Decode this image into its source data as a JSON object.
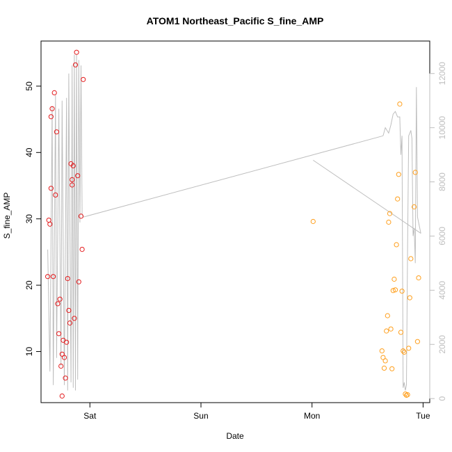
{
  "chart_data": {
    "type": "scatter",
    "title": "ATOM1 Northeast_Pacific S_fine_AMP",
    "xlabel": "Date",
    "ylabel": "S_fine_AMP",
    "x_ticks": [
      "Sat",
      "Sun",
      "Mon",
      "Tue"
    ],
    "x_tick_values": [
      1.0,
      2.0,
      3.0,
      4.0
    ],
    "xlim": [
      0.56,
      4.06
    ],
    "ylim": [
      2.3,
      56.8
    ],
    "y_ticks": [
      10,
      20,
      30,
      40,
      50
    ],
    "y2_ticks": [
      0,
      2000,
      4000,
      6000,
      8000,
      10000,
      12000
    ],
    "y2lim": [
      -150,
      13200
    ],
    "grid": false,
    "colors": {
      "series1": "#e41a1c",
      "series2": "#ff9f1c",
      "line": "#bebebe"
    },
    "series": [
      {
        "color": "#e41a1c",
        "points": [
          [
            0.62,
            21.3
          ],
          [
            0.63,
            29.8
          ],
          [
            0.64,
            29.2
          ],
          [
            0.65,
            34.6
          ],
          [
            0.65,
            45.4
          ],
          [
            0.66,
            46.6
          ],
          [
            0.67,
            21.3
          ],
          [
            0.68,
            49.0
          ],
          [
            0.69,
            33.6
          ],
          [
            0.7,
            43.1
          ],
          [
            0.71,
            17.2
          ],
          [
            0.72,
            12.7
          ],
          [
            0.73,
            17.9
          ],
          [
            0.74,
            7.8
          ],
          [
            0.75,
            3.3
          ],
          [
            0.75,
            9.6
          ],
          [
            0.76,
            11.7
          ],
          [
            0.77,
            9.1
          ],
          [
            0.78,
            6.0
          ],
          [
            0.79,
            11.4
          ],
          [
            0.8,
            21.0
          ],
          [
            0.81,
            16.2
          ],
          [
            0.82,
            14.3
          ],
          [
            0.83,
            38.3
          ],
          [
            0.84,
            35.1
          ],
          [
            0.84,
            35.9
          ],
          [
            0.85,
            38.0
          ],
          [
            0.86,
            15.0
          ],
          [
            0.87,
            53.2
          ],
          [
            0.88,
            55.1
          ],
          [
            0.89,
            36.5
          ],
          [
            0.9,
            20.5
          ],
          [
            0.92,
            30.4
          ],
          [
            0.93,
            25.4
          ],
          [
            0.94,
            51.0
          ]
        ]
      },
      {
        "color": "#ff9f1c",
        "points": [
          [
            3.01,
            29.6
          ],
          [
            3.63,
            10.1
          ],
          [
            3.64,
            9.1
          ],
          [
            3.65,
            7.5
          ],
          [
            3.66,
            8.6
          ],
          [
            3.67,
            13.1
          ],
          [
            3.68,
            15.4
          ],
          [
            3.69,
            29.5
          ],
          [
            3.7,
            30.8
          ],
          [
            3.71,
            13.4
          ],
          [
            3.72,
            7.4
          ],
          [
            3.73,
            19.2
          ],
          [
            3.74,
            20.9
          ],
          [
            3.75,
            19.3
          ],
          [
            3.76,
            26.1
          ],
          [
            3.77,
            33.0
          ],
          [
            3.78,
            36.7
          ],
          [
            3.79,
            47.3
          ],
          [
            3.8,
            12.9
          ],
          [
            3.81,
            19.1
          ],
          [
            3.82,
            10.1
          ],
          [
            3.83,
            9.9
          ],
          [
            3.84,
            3.6
          ],
          [
            3.85,
            3.4
          ],
          [
            3.86,
            3.5
          ],
          [
            3.87,
            10.5
          ],
          [
            3.88,
            18.1
          ],
          [
            3.89,
            24.0
          ],
          [
            3.92,
            31.8
          ],
          [
            3.93,
            37.0
          ],
          [
            3.95,
            11.5
          ],
          [
            3.96,
            21.1
          ]
        ]
      }
    ],
    "line_series": {
      "axis": "right",
      "color": "#bebebe",
      "x": [
        0.62,
        0.64,
        0.66,
        0.67,
        0.69,
        0.7,
        0.72,
        0.74,
        0.75,
        0.77,
        0.79,
        0.8,
        0.81,
        0.83,
        0.84,
        0.85,
        0.86,
        0.87,
        0.88,
        0.89,
        0.9,
        0.91,
        0.92,
        0.93,
        0.94,
        3.64,
        3.66,
        3.69,
        3.71,
        3.73,
        3.75,
        3.77,
        3.79,
        3.8,
        3.81,
        3.82,
        3.83,
        3.84,
        3.85,
        3.86,
        3.87,
        3.88,
        3.89,
        3.9,
        3.91,
        3.92,
        3.93,
        3.94,
        3.95,
        3.96,
        3.97,
        3.98
      ],
      "y": [
        5500,
        1000,
        10800,
        500,
        11200,
        1500,
        10700,
        1200,
        11000,
        500,
        11100,
        300,
        12000,
        600,
        12300,
        400,
        12700,
        300,
        12700,
        700,
        12500,
        6500,
        12300,
        6800,
        6700,
        9700,
        10000,
        9800,
        10100,
        10500,
        10600,
        10400,
        10400,
        9000,
        9700,
        400,
        600,
        300,
        500,
        5500,
        9700,
        9800,
        9900,
        9600,
        6000,
        6300,
        5000,
        11500,
        6700,
        6500,
        6300,
        6100
      ],
      "bridge": [
        [
          0.94,
          6700
        ],
        [
          3.64,
          9700
        ]
      ],
      "bridge2": [
        [
          3.01,
          8800
        ],
        [
          3.98,
          6100
        ]
      ]
    }
  }
}
